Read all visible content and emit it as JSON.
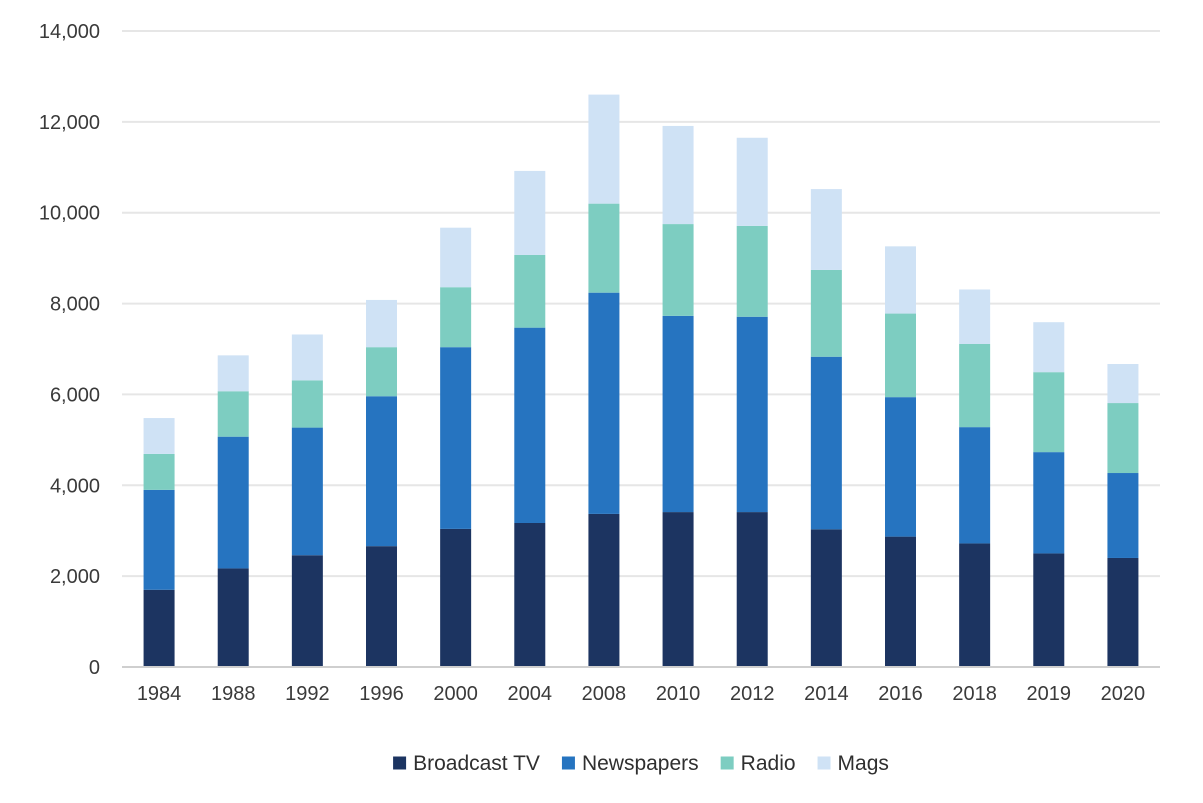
{
  "chart_data": {
    "type": "bar",
    "stacked": true,
    "title": "",
    "xlabel": "",
    "ylabel": "",
    "ylim": [
      0,
      14000
    ],
    "yticks": [
      0,
      2000,
      4000,
      6000,
      8000,
      10000,
      12000,
      14000
    ],
    "ytick_labels": [
      "0",
      "2,000",
      "4,000",
      "6,000",
      "8,000",
      "10,000",
      "12,000",
      "14,000"
    ],
    "grid": true,
    "legend_position": "bottom",
    "categories": [
      "1984",
      "1988",
      "1992",
      "1996",
      "2000",
      "2004",
      "2008",
      "2010",
      "2012",
      "2014",
      "2016",
      "2018",
      "2019",
      "2020"
    ],
    "series": [
      {
        "name": "Broadcast TV",
        "color": "#1c3461",
        "values": [
          1700,
          2170,
          2460,
          2660,
          3040,
          3170,
          3370,
          3410,
          3410,
          3030,
          2870,
          2720,
          2500,
          2400
        ]
      },
      {
        "name": "Newspapers",
        "color": "#2674c0",
        "values": [
          2200,
          2900,
          2810,
          3300,
          4000,
          4300,
          4870,
          4320,
          4300,
          3800,
          3070,
          2560,
          2230,
          1870
        ]
      },
      {
        "name": "Radio",
        "color": "#7dcdc1",
        "values": [
          790,
          1000,
          1040,
          1080,
          1320,
          1600,
          1960,
          2020,
          2000,
          1910,
          1840,
          1830,
          1760,
          1540
        ]
      },
      {
        "name": "Mags",
        "color": "#cfe2f5",
        "values": [
          790,
          790,
          1010,
          1040,
          1310,
          1850,
          2400,
          2160,
          1940,
          1780,
          1480,
          1200,
          1100,
          860
        ]
      }
    ]
  }
}
